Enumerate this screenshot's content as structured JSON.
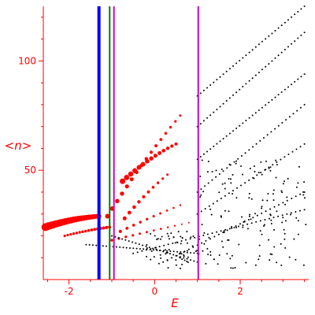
{
  "chart_data": {
    "type": "scatter",
    "xlabel": "E",
    "ylabel": "<n>",
    "xlim": [
      -2.6,
      3.6
    ],
    "ylim": [
      0,
      125
    ],
    "x_ticks": [
      {
        "value": -2,
        "label": "-2"
      },
      {
        "value": 0,
        "label": "0"
      },
      {
        "value": 2,
        "label": "2"
      }
    ],
    "y_ticks": [
      {
        "value": 50,
        "label": "50"
      },
      {
        "value": 100,
        "label": "100"
      }
    ],
    "grid": false,
    "axis_color": "#ff0000",
    "vertical_lines": [
      {
        "x": -1.3,
        "color": "#0000ff",
        "width": 4
      },
      {
        "x": -1.05,
        "color": "#008000",
        "width": 2
      },
      {
        "x": -0.95,
        "color": "#cc00cc",
        "width": 2
      },
      {
        "x": 1.02,
        "color": "#cc00cc",
        "width": 2
      }
    ],
    "series": [
      {
        "color": "#ff0000",
        "segments": [
          {
            "x0": -2.55,
            "x1": -1.3,
            "n": 22,
            "y0": 24,
            "y1": 29,
            "curve": 0.6,
            "r0": 5,
            "r1": 3
          },
          {
            "x0": -2.1,
            "x1": -1.05,
            "n": 16,
            "y0": 20,
            "y1": 24,
            "curve": 0.3,
            "r0": 1.6,
            "r1": 2
          },
          {
            "x0": -1.1,
            "x1": 0.6,
            "n": 16,
            "y0": 29,
            "y1": 75,
            "curve": 0.15,
            "r0": 3,
            "r1": 1.5
          },
          {
            "x0": -0.75,
            "x1": 0.5,
            "n": 14,
            "y0": 45,
            "y1": 62,
            "curve": 0.3,
            "r0": 3.5,
            "r1": 2
          },
          {
            "x0": -0.7,
            "x1": 0.3,
            "n": 10,
            "y0": 28,
            "y1": 48,
            "curve": 0.2,
            "r0": 2.5,
            "r1": 1.5
          },
          {
            "x0": -0.8,
            "x1": 0.6,
            "n": 10,
            "y0": 22,
            "y1": 34,
            "curve": 0.1,
            "r0": 2,
            "r1": 1.2
          },
          {
            "x0": -1.0,
            "x1": 0.8,
            "n": 12,
            "y0": 18,
            "y1": 26,
            "curve": 0.05,
            "r0": 1.8,
            "r1": 1
          }
        ]
      },
      {
        "color": "#000000",
        "segments": [
          {
            "x0": 1.0,
            "x1": 3.5,
            "n": 34,
            "y0": 84,
            "y1": 125,
            "curve": 0,
            "r0": 1,
            "r1": 1
          },
          {
            "x0": 1.0,
            "x1": 3.5,
            "n": 34,
            "y0": 70,
            "y1": 113,
            "curve": 0,
            "r0": 1,
            "r1": 1
          },
          {
            "x0": 1.0,
            "x1": 3.5,
            "n": 34,
            "y0": 55,
            "y1": 94,
            "curve": 0,
            "r0": 1,
            "r1": 1
          },
          {
            "x0": 1.0,
            "x1": 3.5,
            "n": 30,
            "y0": 40,
            "y1": 80,
            "curve": 0,
            "r0": 1,
            "r1": 1
          },
          {
            "x0": 1.0,
            "x1": 3.5,
            "n": 28,
            "y0": 30,
            "y1": 62,
            "curve": 0,
            "r0": 1,
            "r1": 1
          },
          {
            "x0": 0.2,
            "x1": 3.5,
            "n": 34,
            "y0": 8,
            "y1": 40,
            "curve": 0,
            "r0": 1,
            "r1": 1
          },
          {
            "x0": -0.5,
            "x1": 3.5,
            "n": 40,
            "y0": 12,
            "y1": 32,
            "curve": 0,
            "r0": 1,
            "r1": 1
          },
          {
            "x0": -1.6,
            "x1": 1.0,
            "n": 34,
            "y0": 16,
            "y1": 12,
            "curve": 0,
            "r0": 1,
            "r1": 1
          },
          {
            "x0": -1.0,
            "x1": 1.0,
            "n": 26,
            "y0": 20,
            "y1": 8,
            "curve": 0,
            "r0": 1,
            "r1": 1
          }
        ],
        "clouds": [
          {
            "x0": -0.2,
            "x1": 1.0,
            "y0": 5,
            "y1": 22,
            "n": 60,
            "r": 1
          },
          {
            "x0": 1.0,
            "x1": 3.55,
            "y0": 5,
            "y1": 55,
            "n": 150,
            "r": 1
          }
        ]
      }
    ]
  }
}
